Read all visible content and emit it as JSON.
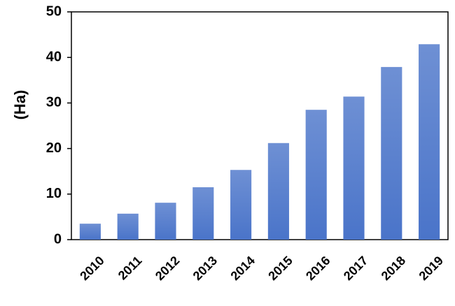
{
  "chart_data": {
    "type": "bar",
    "y_label": "(Ha)",
    "categories": [
      "2010",
      "2011",
      "2012",
      "2013",
      "2014",
      "2015",
      "2016",
      "2017",
      "2018",
      "2019"
    ],
    "values": [
      3.5,
      5.7,
      8.1,
      11.5,
      15.3,
      21.2,
      28.5,
      31.4,
      37.9,
      42.9
    ],
    "color": "#4a74c9",
    "ylim": [
      0,
      50
    ],
    "yticks": [
      0,
      10,
      20,
      30,
      40,
      50
    ],
    "grid": false
  }
}
